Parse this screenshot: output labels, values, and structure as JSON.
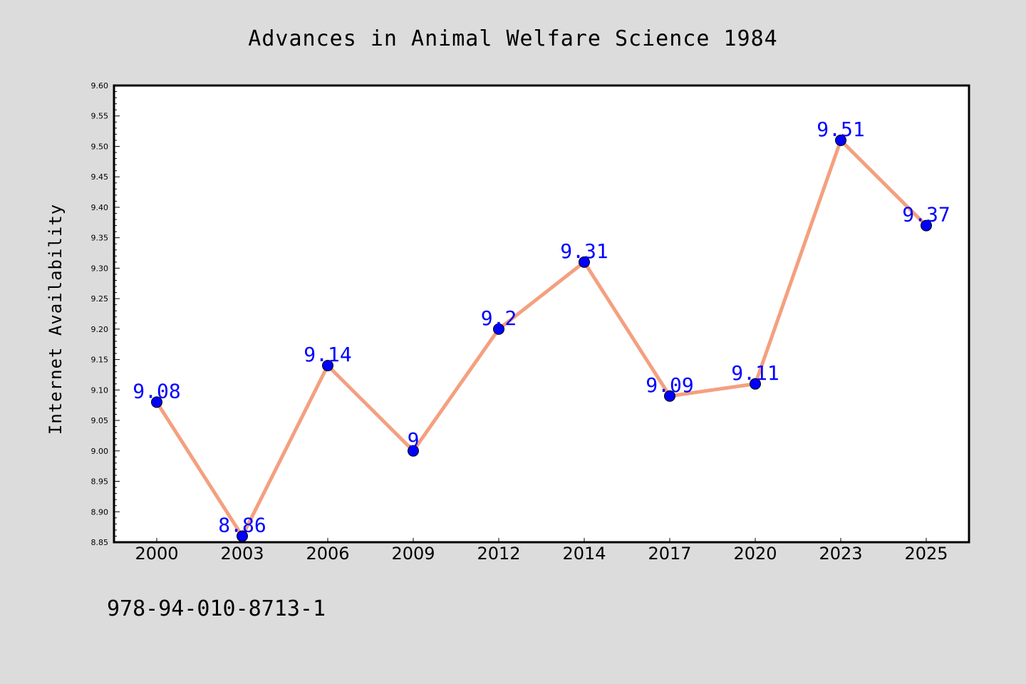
{
  "chart_data": {
    "type": "line",
    "title": "Advances in Animal Welfare Science 1984",
    "xlabel": "",
    "ylabel": "Internet Availability",
    "categories": [
      "2000",
      "2003",
      "2006",
      "2009",
      "2012",
      "2014",
      "2017",
      "2020",
      "2023",
      "2025"
    ],
    "values": [
      9.08,
      8.86,
      9.14,
      9.0,
      9.2,
      9.31,
      9.09,
      9.11,
      9.51,
      9.37
    ],
    "data_labels": [
      "9.08",
      "8.86",
      "9.14",
      "9",
      "9.2",
      "9.31",
      "9.09",
      "9.11",
      "9.51",
      "9.37"
    ],
    "ylim": [
      8.85,
      9.6
    ],
    "yticks": [
      "8.85",
      "8.90",
      "8.95",
      "9.00",
      "9.05",
      "9.10",
      "9.15",
      "9.20",
      "9.25",
      "9.30",
      "9.35",
      "9.40",
      "9.45",
      "9.50",
      "9.55",
      "9.60"
    ],
    "grid": false,
    "legend": "none",
    "colors": {
      "line": "#f4a07f",
      "marker": "#0000ff",
      "label": "#0000ff",
      "background": "#dcdcdc",
      "plot_background": "#ffffff"
    }
  },
  "footer_text": "978-94-010-8713-1"
}
